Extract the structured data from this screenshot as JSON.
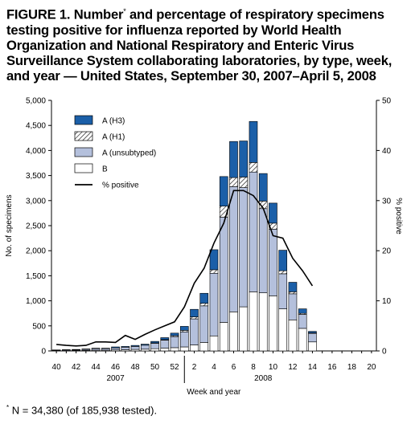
{
  "title": {
    "part1": "FIGURE 1. Number",
    "sup": "*",
    "part2": " and percentage of respiratory specimens testing positive for influenza reported by World Health Organization and National Respiratory and Enteric Virus Surveillance System collaborating laboratories, by type, week, and year — United States, September 30, 2007–April 5, 2008"
  },
  "footnote": {
    "sup": "*",
    "text": " N = 34,380 (of 185,938 tested)."
  },
  "chart_data": {
    "type": "bar",
    "stacked": true,
    "xlabel": "Week and year",
    "ylabel": "No. of specimens",
    "y2label": "% positive",
    "ylim": [
      0,
      5000
    ],
    "y2lim": [
      0,
      50
    ],
    "yticks": [
      "0",
      "500",
      "1,000",
      "1,500",
      "2,000",
      "2,500",
      "3,000",
      "3,500",
      "4,000",
      "4,500",
      "5,000"
    ],
    "y2ticks": [
      "0",
      "10",
      "20",
      "30",
      "40",
      "50"
    ],
    "weeks": [
      40,
      41,
      42,
      43,
      44,
      45,
      46,
      47,
      48,
      49,
      50,
      51,
      52,
      1,
      2,
      3,
      4,
      5,
      6,
      7,
      8,
      9,
      10,
      11,
      12,
      13,
      14,
      15,
      16,
      17,
      18,
      19,
      20
    ],
    "xtick_labels": [
      "40",
      "42",
      "44",
      "46",
      "48",
      "50",
      "52",
      "2",
      "4",
      "6",
      "8",
      "10",
      "12",
      "14",
      "16",
      "18",
      "20"
    ],
    "year_labels": [
      "2007",
      "2008"
    ],
    "legend": [
      "A (H3)",
      "A (H1)",
      "A (unsubtyped)",
      "B",
      "% positive"
    ],
    "series": [
      {
        "name": "B",
        "color": "#ffffff",
        "values": [
          5,
          5,
          10,
          10,
          15,
          15,
          20,
          25,
          30,
          35,
          45,
          55,
          65,
          80,
          120,
          170,
          300,
          570,
          780,
          880,
          1180,
          1160,
          1100,
          840,
          620,
          450,
          180,
          0,
          0,
          0,
          0,
          0,
          0
        ]
      },
      {
        "name": "A (unsubtyped)",
        "color": "#b4c0dc",
        "values": [
          10,
          15,
          15,
          20,
          30,
          30,
          40,
          50,
          60,
          80,
          110,
          160,
          220,
          300,
          520,
          730,
          1250,
          2100,
          2500,
          2380,
          2390,
          1680,
          1330,
          700,
          520,
          280,
          170,
          0,
          0,
          0,
          0,
          0,
          0
        ]
      },
      {
        "name": "A (H1)",
        "color": "#ffffff",
        "hatched": true,
        "values": [
          0,
          0,
          0,
          0,
          0,
          0,
          0,
          0,
          0,
          0,
          5,
          10,
          20,
          30,
          40,
          50,
          70,
          220,
          180,
          210,
          190,
          150,
          120,
          60,
          40,
          20,
          10,
          0,
          0,
          0,
          0,
          0,
          0
        ]
      },
      {
        "name": "A (H3)",
        "color": "#1b5fa8",
        "values": [
          5,
          5,
          5,
          10,
          10,
          10,
          20,
          15,
          20,
          20,
          30,
          40,
          50,
          80,
          150,
          200,
          400,
          590,
          720,
          720,
          820,
          550,
          400,
          410,
          190,
          90,
          30,
          0,
          0,
          0,
          0,
          0,
          0
        ]
      }
    ],
    "percent_positive": [
      1.3,
      1.1,
      1.0,
      1.1,
      1.8,
      1.8,
      1.7,
      3.1,
      2.3,
      3.3,
      4.2,
      5.0,
      5.8,
      8.8,
      13.5,
      16.5,
      21.5,
      25.5,
      32.0,
      32.0,
      31.0,
      28.5,
      23.0,
      22.5,
      18.5,
      16.0,
      13.0,
      null,
      null,
      null,
      null,
      null,
      null
    ],
    "grid": false,
    "legend_position": "top-left"
  }
}
